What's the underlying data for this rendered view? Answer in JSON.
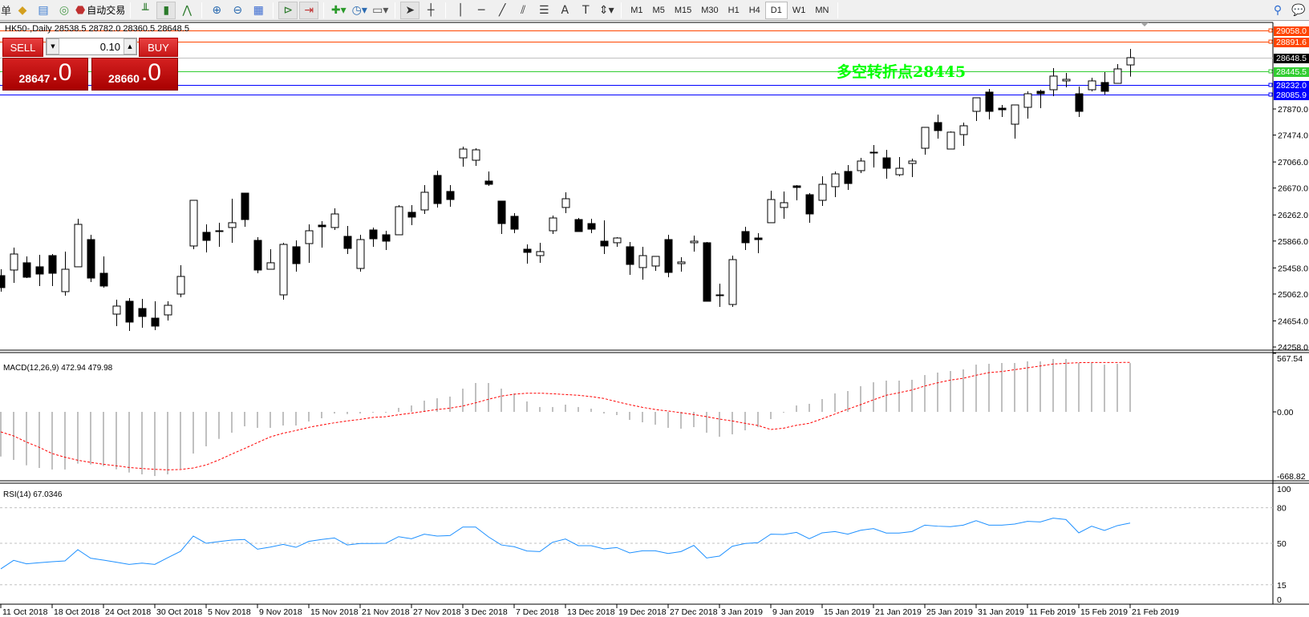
{
  "toolbar": {
    "menu_fragment": "单",
    "auto_trading": "自动交易",
    "timeframes": [
      "M1",
      "M5",
      "M15",
      "M30",
      "H1",
      "H4",
      "D1",
      "W1",
      "MN"
    ],
    "active_timeframe": "D1",
    "icons": [
      "market-watch-icon",
      "navigator-icon",
      "signals-icon",
      "auto-trading-icon",
      "bar-chart-icon",
      "candlestick-icon",
      "line-chart-icon",
      "zoom-in-icon",
      "zoom-out-icon",
      "tile-windows-icon",
      "autoscroll-icon",
      "chart-shift-icon",
      "new-order-icon",
      "periods-icon",
      "templates-icon",
      "cursor-icon",
      "crosshair-icon",
      "vertical-line-icon",
      "horizontal-line-icon",
      "trendline-icon",
      "equidistant-channel-icon",
      "fibonacci-icon",
      "text-icon",
      "text-label-icon",
      "arrows-icon",
      "search-icon",
      "chat-icon"
    ]
  },
  "chart": {
    "symbol_info": "HK50-,Daily  28538.5 28782.0 28360.5 28648.5",
    "annotation": "多空转折点28445",
    "annotation_color": "#00ff00",
    "levels": [
      {
        "price": 29058.0,
        "label": "29058.0",
        "color": "#ff4500"
      },
      {
        "price": 28891.6,
        "label": "28891.6",
        "color": "#ff4500"
      },
      {
        "price": 28648.5,
        "label": "28648.5",
        "color": "#000000",
        "line_color": "#c0c0c0"
      },
      {
        "price": 28445.5,
        "label": "28445.5",
        "color": "#32cd32",
        "line_color": "#32cd32"
      },
      {
        "price": 28232.0,
        "label": "28232.0",
        "color": "#0000ff"
      },
      {
        "price": 28085.9,
        "label": "28085.9",
        "color": "#0000ff"
      }
    ]
  },
  "trade_panel": {
    "sell_label": "SELL",
    "buy_label": "BUY",
    "lot": "0.10",
    "sell_price_main": "28647",
    "sell_price_frac": ".0",
    "buy_price_main": "28660",
    "buy_price_frac": ".0"
  },
  "indicators": {
    "macd_label": "MACD(12,26,9) 472.94 479.98",
    "rsi_label": "RSI(14) 67.0346"
  },
  "chart_data": [
    {
      "type": "candlestick",
      "symbol": "HK50-",
      "timeframe": "Daily",
      "ohlc": [
        [
          25341,
          25438,
          25098,
          25159
        ],
        [
          25426,
          25767,
          25232,
          25669
        ],
        [
          25536,
          25633,
          25304,
          25317
        ],
        [
          25475,
          25657,
          25183,
          25365
        ],
        [
          25645,
          25669,
          25183,
          25377
        ],
        [
          25098,
          25706,
          25037,
          25438
        ],
        [
          25475,
          26204,
          25475,
          26119
        ],
        [
          25888,
          25961,
          25244,
          25304
        ],
        [
          25377,
          25633,
          25159,
          25183
        ],
        [
          24757,
          24976,
          24575,
          24879
        ],
        [
          24952,
          25000,
          24502,
          24636
        ],
        [
          24842,
          24988,
          24551,
          24721
        ],
        [
          24696,
          24952,
          24514,
          24575
        ],
        [
          24745,
          24952,
          24660,
          24891
        ],
        [
          25061,
          25499,
          25013,
          25329
        ],
        [
          25791,
          26484,
          25742,
          26484
        ],
        [
          25998,
          26119,
          25694,
          25876
        ],
        [
          26022,
          26144,
          25779,
          26010
        ],
        [
          26071,
          26508,
          25840,
          26144
        ],
        [
          26593,
          26593,
          26083,
          26192
        ],
        [
          25876,
          25925,
          25377,
          25426
        ],
        [
          25438,
          25742,
          25438,
          25536
        ],
        [
          25049,
          25840,
          24976,
          25815
        ],
        [
          25779,
          25876,
          25402,
          25523
        ],
        [
          25827,
          26119,
          25536,
          26022
        ],
        [
          26107,
          26168,
          25767,
          26083
        ],
        [
          26071,
          26362,
          26034,
          26277
        ],
        [
          25937,
          26095,
          25669,
          25754
        ],
        [
          25450,
          25961,
          25402,
          25888
        ],
        [
          26034,
          26071,
          25779,
          25900
        ],
        [
          25961,
          26022,
          25730,
          25864
        ],
        [
          25961,
          26411,
          25961,
          26387
        ],
        [
          26302,
          26411,
          26107,
          26229
        ],
        [
          26338,
          26715,
          26277,
          26606
        ],
        [
          26861,
          26934,
          26375,
          26435
        ],
        [
          26618,
          26715,
          26387,
          26496
        ],
        [
          27128,
          27299,
          26995,
          27262
        ],
        [
          27092,
          27274,
          27007,
          27250
        ],
        [
          26776,
          26922,
          26703,
          26727
        ],
        [
          26472,
          26472,
          25973,
          26131
        ],
        [
          26241,
          26289,
          25985,
          26046
        ],
        [
          25742,
          25815,
          25523,
          25694
        ],
        [
          25645,
          25840,
          25536,
          25706
        ],
        [
          26022,
          26253,
          25973,
          26216
        ],
        [
          26375,
          26606,
          26289,
          26508
        ],
        [
          26192,
          26216,
          26010,
          26010
        ],
        [
          26131,
          26204,
          25985,
          26046
        ],
        [
          25864,
          26180,
          25669,
          25791
        ],
        [
          25840,
          25925,
          25779,
          25912
        ],
        [
          25779,
          25852,
          25353,
          25511
        ],
        [
          25463,
          25779,
          25280,
          25645
        ],
        [
          25487,
          25633,
          25414,
          25633
        ],
        [
          25888,
          25961,
          25317,
          25390
        ],
        [
          25523,
          25621,
          25402,
          25548
        ],
        [
          25840,
          25949,
          25706,
          25864
        ],
        [
          25840,
          25852,
          24952,
          24952
        ],
        [
          25049,
          25219,
          24867,
          25040
        ],
        [
          24903,
          25645,
          24867,
          25584
        ],
        [
          26010,
          26083,
          25730,
          25840
        ],
        [
          25912,
          25985,
          25681,
          25888
        ],
        [
          26144,
          26630,
          26144,
          26496
        ],
        [
          26375,
          26618,
          26204,
          26448
        ],
        [
          26703,
          26715,
          26484,
          26679
        ],
        [
          26569,
          26593,
          26144,
          26277
        ],
        [
          26484,
          26849,
          26399,
          26727
        ],
        [
          26691,
          26922,
          26533,
          26885
        ],
        [
          26922,
          27019,
          26642,
          26739
        ],
        [
          26934,
          27128,
          26897,
          27080
        ],
        [
          27214,
          27323,
          26983,
          27210
        ],
        [
          27128,
          27250,
          26812,
          26970
        ],
        [
          26873,
          27141,
          26849,
          26970
        ],
        [
          27043,
          27116,
          26837,
          27080
        ],
        [
          27274,
          27591,
          27177,
          27591
        ],
        [
          27664,
          27785,
          27420,
          27542
        ],
        [
          27262,
          27530,
          27262,
          27518
        ],
        [
          27481,
          27664,
          27311,
          27615
        ],
        [
          27834,
          28040,
          27688,
          28040
        ],
        [
          28126,
          28174,
          27712,
          27834
        ],
        [
          27882,
          27931,
          27749,
          27858
        ],
        [
          27639,
          27931,
          27420,
          27931
        ],
        [
          27895,
          28138,
          27724,
          28101
        ],
        [
          28138,
          28162,
          27882,
          28101
        ],
        [
          28162,
          28490,
          28065,
          28369
        ],
        [
          28296,
          28417,
          28199,
          28320
        ],
        [
          28101,
          28211,
          27749,
          27834
        ],
        [
          28162,
          28344,
          28138,
          28296
        ],
        [
          28272,
          28430,
          28089,
          28138
        ],
        [
          28259,
          28551,
          28259,
          28478
        ],
        [
          28538.5,
          28782,
          28360.5,
          28648.5
        ]
      ],
      "price_ticks": [
        27870.0,
        27474.0,
        27066.0,
        26670.0,
        26262.0,
        25866.0,
        25458.0,
        25062.0,
        24654.0,
        24258.0
      ],
      "date_ticks": [
        {
          "bar": 0,
          "label": "11 Oct 2018"
        },
        {
          "bar": 4,
          "label": "18 Oct 2018"
        },
        {
          "bar": 8,
          "label": "24 Oct 2018"
        },
        {
          "bar": 12,
          "label": "30 Oct 2018"
        },
        {
          "bar": 16,
          "label": "5 Nov 2018"
        },
        {
          "bar": 20,
          "label": "9 Nov 2018"
        },
        {
          "bar": 24,
          "label": "15 Nov 2018"
        },
        {
          "bar": 28,
          "label": "21 Nov 2018"
        },
        {
          "bar": 32,
          "label": "27 Nov 2018"
        },
        {
          "bar": 36,
          "label": "3 Dec 2018"
        },
        {
          "bar": 40,
          "label": "7 Dec 2018"
        },
        {
          "bar": 44,
          "label": "13 Dec 2018"
        },
        {
          "bar": 48,
          "label": "19 Dec 2018"
        },
        {
          "bar": 52,
          "label": "27 Dec 2018"
        },
        {
          "bar": 56,
          "label": "3 Jan 2019"
        },
        {
          "bar": 60,
          "label": "9 Jan 2019"
        },
        {
          "bar": 64,
          "label": "15 Jan 2019"
        },
        {
          "bar": 68,
          "label": "21 Jan 2019"
        },
        {
          "bar": 72,
          "label": "25 Jan 2019"
        },
        {
          "bar": 76,
          "label": "31 Jan 2019"
        },
        {
          "bar": 80,
          "label": "11 Feb 2019"
        },
        {
          "bar": 84,
          "label": "15 Feb 2019"
        },
        {
          "bar": 88,
          "label": "21 Feb 2019"
        }
      ],
      "bull_color": "#ffffff",
      "bear_color": "#000000"
    },
    {
      "type": "bar+line",
      "name": "MACD(12,26,9)",
      "ylim": [
        -668.82,
        567.54
      ],
      "axis_labels": [
        "567.54",
        "0.00",
        "-668.82"
      ],
      "histogram": [
        -433,
        -466,
        -518,
        -544,
        -559,
        -559,
        -502,
        -510,
        -526,
        -557,
        -588,
        -606,
        -622,
        -606,
        -552,
        -404,
        -334,
        -262,
        -202,
        -140,
        -155,
        -155,
        -132,
        -132,
        -93,
        -62,
        -16,
        -21,
        -16,
        -5,
        0,
        39,
        62,
        109,
        132,
        148,
        225,
        280,
        280,
        225,
        179,
        101,
        47,
        47,
        70,
        47,
        31,
        -16,
        -31,
        -78,
        -101,
        -124,
        -155,
        -163,
        -148,
        -202,
        -241,
        -218,
        -179,
        -148,
        -70,
        -5,
        62,
        78,
        124,
        179,
        202,
        249,
        287,
        303,
        303,
        311,
        357,
        381,
        396,
        412,
        458,
        466,
        474,
        474,
        490,
        490,
        513,
        513,
        474,
        474,
        458,
        466,
        472.94
      ],
      "signal": [
        -194,
        -233,
        -293,
        -344,
        -404,
        -440,
        -469,
        -490,
        -508,
        -523,
        -539,
        -549,
        -557,
        -562,
        -559,
        -544,
        -515,
        -466,
        -409,
        -355,
        -298,
        -243,
        -207,
        -181,
        -150,
        -127,
        -106,
        -88,
        -73,
        -54,
        -47,
        -28,
        -13,
        5,
        23,
        36,
        57,
        88,
        122,
        153,
        171,
        181,
        181,
        176,
        168,
        161,
        148,
        130,
        98,
        70,
        44,
        23,
        8,
        -8,
        -26,
        -47,
        -70,
        -88,
        -111,
        -132,
        -171,
        -158,
        -130,
        -111,
        -67,
        -21,
        26,
        70,
        117,
        161,
        186,
        212,
        251,
        282,
        308,
        326,
        355,
        381,
        391,
        409,
        427,
        445,
        464,
        471,
        477,
        479,
        479,
        479,
        479.98
      ],
      "histogram_color": "#c0c0c0",
      "signal_color": "#ff0000"
    },
    {
      "type": "line",
      "name": "RSI(14)",
      "ylim": [
        0,
        100
      ],
      "levels": [
        80,
        50,
        15
      ],
      "axis_labels": [
        "100",
        "80",
        "50",
        "15",
        "0"
      ],
      "values": [
        28.4,
        35.6,
        32.7,
        33.6,
        34.5,
        35.1,
        44.6,
        37.4,
        35.8,
        34.0,
        32.2,
        33.3,
        32.2,
        37.8,
        43.2,
        56.1,
        50.0,
        51.4,
        52.7,
        53.2,
        45.0,
        46.8,
        49.1,
        46.6,
        51.6,
        53.2,
        54.5,
        48.6,
        49.8,
        49.8,
        50.0,
        55.6,
        53.8,
        57.7,
        56.1,
        56.5,
        63.7,
        63.7,
        55.4,
        48.6,
        47.1,
        43.5,
        43.0,
        50.9,
        53.6,
        48.0,
        48.0,
        45.3,
        46.4,
        41.9,
        43.7,
        43.7,
        41.4,
        43.0,
        48.2,
        37.6,
        39.2,
        47.5,
        49.8,
        50.5,
        57.7,
        57.4,
        59.2,
        53.8,
        58.8,
        59.9,
        57.7,
        61.0,
        62.4,
        58.6,
        58.6,
        59.9,
        65.3,
        64.4,
        64.0,
        65.3,
        69.1,
        65.3,
        65.3,
        66.2,
        68.5,
        68.0,
        71.2,
        70.0,
        58.8,
        64.4,
        60.8,
        64.9,
        67.0346
      ],
      "line_color": "#1e90ff"
    }
  ]
}
